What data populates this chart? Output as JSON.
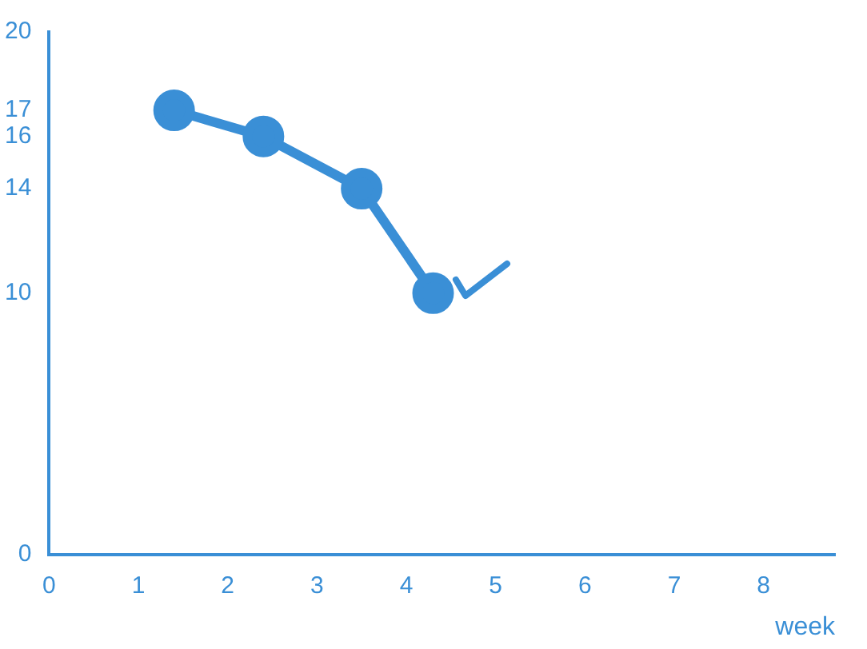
{
  "chart_data": {
    "type": "line",
    "xlabel": "week",
    "x": [
      1.4,
      2.4,
      3.5,
      4.3
    ],
    "series": [
      {
        "color": "#3a8fd6",
        "values": [
          17,
          16,
          14,
          10
        ]
      }
    ],
    "xlim": [
      0,
      8.8
    ],
    "xticks": [
      0,
      1,
      2,
      3,
      4,
      5,
      6,
      7,
      8
    ],
    "ylim": [
      0,
      20
    ],
    "yticks": [
      0,
      10,
      14,
      16,
      17,
      20
    ],
    "grid": false,
    "legend": false,
    "marker": "circle",
    "line_style": "solid"
  }
}
